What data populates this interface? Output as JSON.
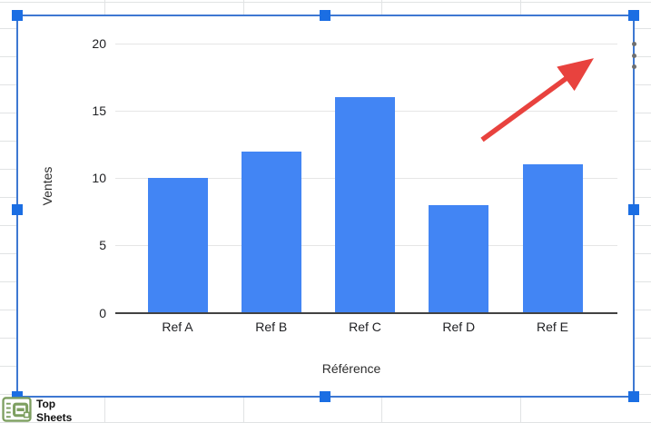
{
  "chart_data": {
    "type": "bar",
    "categories": [
      "Ref A",
      "Ref B",
      "Ref C",
      "Ref D",
      "Ref E"
    ],
    "values": [
      10,
      12,
      16,
      8,
      11
    ],
    "title": "",
    "xlabel": "Référence",
    "ylabel": "Ventes",
    "yticks": [
      0,
      5,
      10,
      15,
      20
    ],
    "ylim": [
      0,
      20
    ],
    "grid": true,
    "legend": "none",
    "bar_color": "#4285f4"
  },
  "chart_menu": {
    "icon": "kebab-menu-icon"
  },
  "annotation": {
    "type": "arrow",
    "color": "#e8423e",
    "from": [
      531,
      154
    ],
    "to": [
      656,
      63
    ]
  },
  "selection": {
    "border_color": "#3e78d2",
    "handle_color": "#1b6ee3",
    "handles": 8
  },
  "watermark": {
    "line1": "Top",
    "line2": "Sheets",
    "icon": "top-sheets-logo",
    "icon_color": "#7d9f60"
  },
  "colors": {
    "sheet_gridline": "#e1e3e4",
    "chart_gridline": "#e6e6e6",
    "axis_line": "#424242",
    "tick_text": "#202124"
  }
}
